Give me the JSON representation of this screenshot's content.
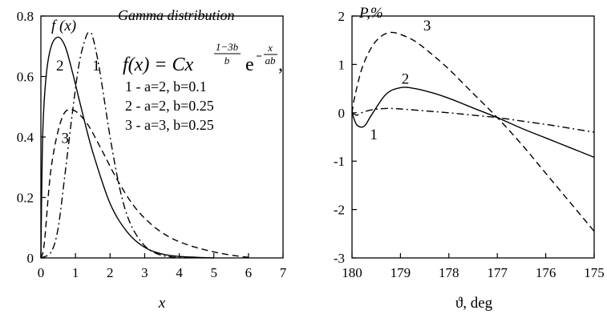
{
  "chart_data": [
    {
      "type": "line",
      "title": "",
      "xlabel": "x",
      "ylabel": "f (x)",
      "xlim": [
        0,
        7
      ],
      "ylim": [
        0,
        0.8
      ],
      "xticks": [
        "0",
        "1",
        "2",
        "3",
        "4",
        "5",
        "6",
        "7"
      ],
      "yticks": [
        "0",
        "0.2",
        "0.4",
        "0.6",
        "0.8"
      ],
      "grid": false,
      "annotation": {
        "title": "Gamma distribution",
        "formula_main": "f(x) = Cx",
        "formula_exp1": "1−3b",
        "formula_exp1_den": "b",
        "formula_e": "e",
        "formula_exp2_num": "x",
        "formula_exp2_den": "ab",
        "legend_lines": [
          "1 - a=2, b=0.1",
          "2 - a=2, b=0.25",
          "3 - a=3, b=0.25"
        ]
      },
      "series": [
        {
          "name": "1",
          "style": "dash-dot",
          "x": [
            0,
            0.3,
            0.5,
            0.7,
            0.9,
            1.1,
            1.3,
            1.4,
            1.5,
            1.7,
            2.0,
            2.3,
            2.6,
            3.0,
            3.4,
            3.8,
            4.2
          ],
          "y": [
            0,
            0.02,
            0.1,
            0.28,
            0.47,
            0.64,
            0.73,
            0.745,
            0.73,
            0.62,
            0.4,
            0.22,
            0.11,
            0.04,
            0.012,
            0.003,
            0
          ]
        },
        {
          "name": "2",
          "style": "solid",
          "x": [
            0,
            0.05,
            0.15,
            0.3,
            0.5,
            0.7,
            0.9,
            1.2,
            1.5,
            2.0,
            2.5,
            3.0,
            3.5,
            4.0,
            4.5,
            5.0
          ],
          "y": [
            0,
            0.4,
            0.6,
            0.7,
            0.73,
            0.7,
            0.62,
            0.48,
            0.35,
            0.18,
            0.085,
            0.035,
            0.013,
            0.005,
            0.002,
            0
          ]
        },
        {
          "name": "3",
          "style": "dashed",
          "x": [
            0,
            0.1,
            0.3,
            0.6,
            0.9,
            1.3,
            1.7,
            2.2,
            2.7,
            3.2,
            3.7,
            4.2,
            4.7,
            5.2,
            5.7,
            6.0
          ],
          "y": [
            0,
            0.05,
            0.3,
            0.46,
            0.49,
            0.45,
            0.37,
            0.26,
            0.17,
            0.11,
            0.07,
            0.045,
            0.028,
            0.015,
            0.006,
            0.002
          ]
        }
      ]
    },
    {
      "type": "line",
      "title": "",
      "xlabel": "ϑ, deg",
      "ylabel": "P,%",
      "xlim": [
        180,
        175
      ],
      "ylim": [
        -3,
        2
      ],
      "xticks": [
        "180",
        "179",
        "178",
        "177",
        "176",
        "175"
      ],
      "yticks": [
        "-3",
        "-2",
        "-1",
        "0",
        "1",
        "2"
      ],
      "grid": false,
      "series": [
        {
          "name": "1",
          "style": "dash-dot",
          "x": [
            180,
            179.9,
            179.8,
            179.6,
            179.3,
            179.0,
            178.5,
            178.0,
            177.5,
            177.0,
            176.5,
            176.0,
            175.5,
            175.0
          ],
          "y": [
            0,
            -0.05,
            0.0,
            0.06,
            0.09,
            0.08,
            0.04,
            0.0,
            -0.05,
            -0.1,
            -0.17,
            -0.24,
            -0.32,
            -0.4
          ]
        },
        {
          "name": "2",
          "style": "solid",
          "x": [
            180,
            179.9,
            179.75,
            179.6,
            179.3,
            179.0,
            178.7,
            178.3,
            178.0,
            177.5,
            177.0,
            176.5,
            176.0,
            175.5,
            175.0
          ],
          "y": [
            0,
            -0.25,
            -0.28,
            -0.05,
            0.38,
            0.52,
            0.5,
            0.4,
            0.3,
            0.1,
            -0.1,
            -0.32,
            -0.52,
            -0.72,
            -0.92
          ]
        },
        {
          "name": "3",
          "style": "dashed",
          "x": [
            180,
            179.95,
            179.8,
            179.6,
            179.4,
            179.2,
            179.0,
            178.7,
            178.4,
            178.0,
            177.5,
            177.0,
            176.5,
            176.0,
            175.5,
            175.0
          ],
          "y": [
            0,
            0.3,
            0.9,
            1.35,
            1.58,
            1.66,
            1.62,
            1.48,
            1.25,
            0.9,
            0.4,
            -0.1,
            -0.65,
            -1.25,
            -1.85,
            -2.45
          ]
        }
      ]
    }
  ]
}
